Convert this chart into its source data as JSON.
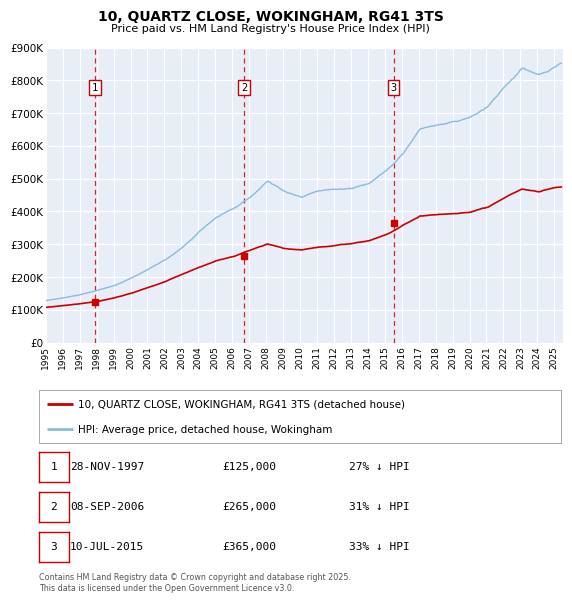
{
  "title": "10, QUARTZ CLOSE, WOKINGHAM, RG41 3TS",
  "subtitle": "Price paid vs. HM Land Registry's House Price Index (HPI)",
  "legend_red": "10, QUARTZ CLOSE, WOKINGHAM, RG41 3TS (detached house)",
  "legend_blue": "HPI: Average price, detached house, Wokingham",
  "footer": "Contains HM Land Registry data © Crown copyright and database right 2025.\nThis data is licensed under the Open Government Licence v3.0.",
  "transactions": [
    {
      "num": 1,
      "date": "28-NOV-1997",
      "price": 125000,
      "hpi_diff": "27% ↓ HPI",
      "year": 1997.91
    },
    {
      "num": 2,
      "date": "08-SEP-2006",
      "price": 265000,
      "hpi_diff": "31% ↓ HPI",
      "year": 2006.69
    },
    {
      "num": 3,
      "date": "10-JUL-2015",
      "price": 365000,
      "hpi_diff": "33% ↓ HPI",
      "year": 2015.52
    }
  ],
  "red_color": "#cc0000",
  "blue_color": "#88bbdd",
  "bg_color": "#ffffff",
  "plot_bg": "#e8eef8",
  "grid_color": "#ffffff",
  "ylim": [
    0,
    900000
  ],
  "xlim_start": 1995.0,
  "xlim_end": 2025.5,
  "yticks": [
    0,
    100000,
    200000,
    300000,
    400000,
    500000,
    600000,
    700000,
    800000,
    900000
  ],
  "ytick_labels": [
    "£0",
    "£100K",
    "£200K",
    "£300K",
    "£400K",
    "£500K",
    "£600K",
    "£700K",
    "£800K",
    "£900K"
  ],
  "xticks": [
    1995,
    1996,
    1997,
    1998,
    1999,
    2000,
    2001,
    2002,
    2003,
    2004,
    2005,
    2006,
    2007,
    2008,
    2009,
    2010,
    2011,
    2012,
    2013,
    2014,
    2015,
    2016,
    2017,
    2018,
    2019,
    2020,
    2021,
    2022,
    2023,
    2024,
    2025
  ]
}
